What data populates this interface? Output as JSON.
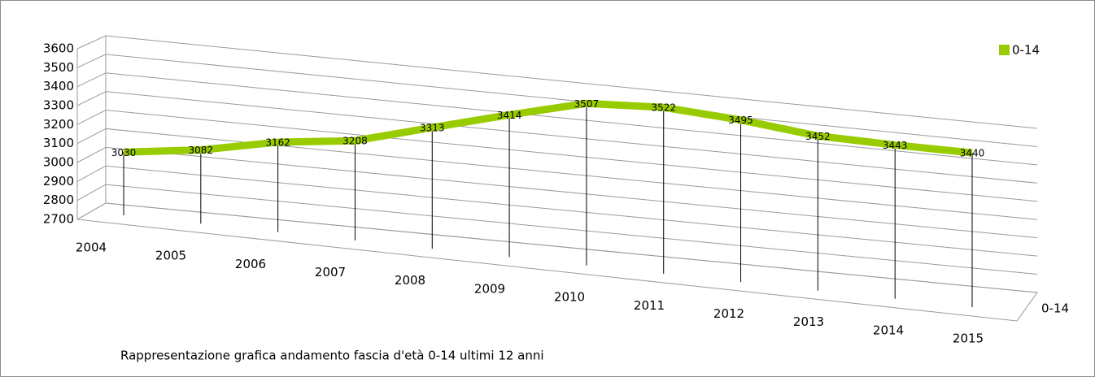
{
  "chart_data": {
    "type": "line",
    "caption": "Rappresentazione grafica andamento fascia d'età 0-14 ultimi 12 anni",
    "categories": [
      "2004",
      "2005",
      "2006",
      "2007",
      "2008",
      "2009",
      "2010",
      "2011",
      "2012",
      "2013",
      "2014",
      "2015"
    ],
    "series": [
      {
        "name": "0-14",
        "color": "#99cc00",
        "values": [
          3030,
          3082,
          3162,
          3208,
          3313,
          3414,
          3507,
          3522,
          3495,
          3452,
          3443,
          3440
        ]
      }
    ],
    "ylim": [
      2700,
      3600
    ],
    "yticks": [
      2700,
      2800,
      2900,
      3000,
      3100,
      3200,
      3300,
      3400,
      3500,
      3600
    ],
    "grid": true,
    "legend": "top-right"
  }
}
